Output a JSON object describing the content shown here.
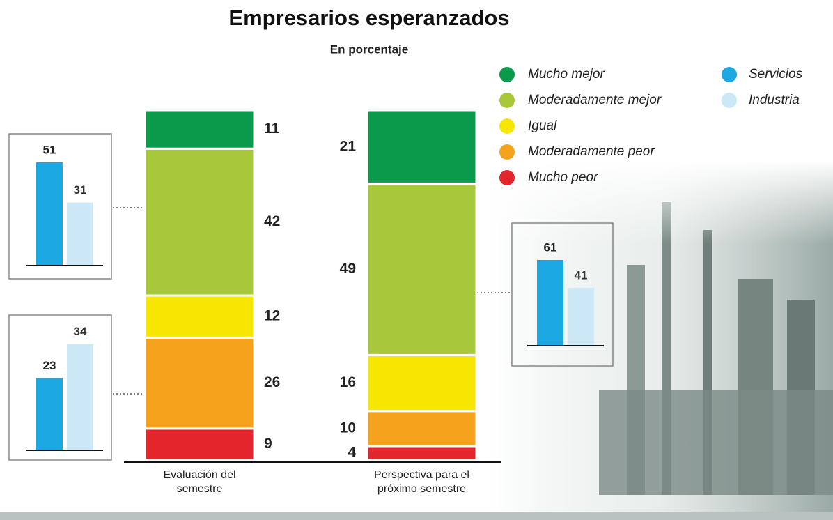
{
  "chart_data": [
    {
      "type": "bar",
      "stacked": true,
      "title": "Empresarios esperanzados",
      "subtitle": "En porcentaje",
      "categories": [
        "Evaluación del semestre",
        "Perspectiva para el próximo semestre"
      ],
      "series": [
        {
          "name": "Mucho mejor",
          "color": "#0b9a4b",
          "values": [
            11,
            21
          ]
        },
        {
          "name": "Moderadamente mejor",
          "color": "#a8c83b",
          "values": [
            42,
            49
          ]
        },
        {
          "name": "Igual",
          "color": "#f6e600",
          "values": [
            12,
            16
          ]
        },
        {
          "name": "Moderadamente peor",
          "color": "#f5a31c",
          "values": [
            26,
            10
          ]
        },
        {
          "name": "Mucho peor",
          "color": "#e3262b",
          "values": [
            9,
            4
          ]
        }
      ],
      "ylim": [
        0,
        100
      ]
    },
    {
      "type": "bar",
      "series": [
        {
          "name": "Servicios",
          "color": "#1ba7e1",
          "values": [
            51
          ]
        },
        {
          "name": "Industria",
          "color": "#cce7f6",
          "values": [
            31
          ]
        }
      ],
      "ylim": [
        0,
        60
      ]
    },
    {
      "type": "bar",
      "series": [
        {
          "name": "Servicios",
          "color": "#1ba7e1",
          "values": [
            23
          ]
        },
        {
          "name": "Industria",
          "color": "#cce7f6",
          "values": [
            34
          ]
        }
      ],
      "ylim": [
        0,
        40
      ]
    },
    {
      "type": "bar",
      "series": [
        {
          "name": "Servicios",
          "color": "#1ba7e1",
          "values": [
            61
          ]
        },
        {
          "name": "Industria",
          "color": "#cce7f6",
          "values": [
            41
          ]
        }
      ],
      "ylim": [
        0,
        80
      ]
    }
  ]
}
